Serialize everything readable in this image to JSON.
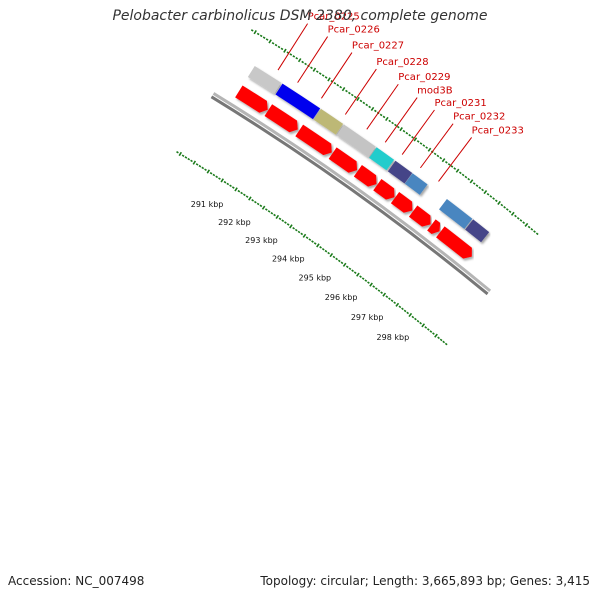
{
  "title": "Pelobacter carbinolicus DSM 2380, complete genome",
  "footer": {
    "accession": "Accession: NC_007498",
    "summary": "Topology: circular; Length: 3,665,893 bp; Genes: 3,415"
  },
  "colors": {
    "label": "#cc0000",
    "forward_gene": "#ff0000",
    "tick": "#1a7a1a",
    "backbone": "#777777"
  },
  "gene_labels": [
    {
      "name": "Pcar_0225",
      "bp": 290630
    },
    {
      "name": "Pcar_0226",
      "bp": 291300
    },
    {
      "name": "Pcar_0227",
      "bp": 292120
    },
    {
      "name": "Pcar_0228",
      "bp": 292950
    },
    {
      "name": "Pcar_0229",
      "bp": 293700
    },
    {
      "name": "mod3B",
      "bp": 294350
    },
    {
      "name": "Pcar_0231",
      "bp": 294950
    },
    {
      "name": "Pcar_0232",
      "bp": 295600
    },
    {
      "name": "Pcar_0233",
      "bp": 296250
    }
  ],
  "outer_genes": [
    {
      "start": 290000,
      "end": 290900,
      "color": "#c8c8c8"
    },
    {
      "start": 290950,
      "end": 292250,
      "color": "#0000ee"
    },
    {
      "start": 292280,
      "end": 293050,
      "color": "#bdb876"
    },
    {
      "start": 293080,
      "end": 294200,
      "color": "#c4c4c4"
    },
    {
      "start": 294230,
      "end": 294850,
      "color": "#22cccc"
    },
    {
      "start": 294900,
      "end": 295500,
      "color": "#444488"
    },
    {
      "start": 295510,
      "end": 296050,
      "color": "#4a86c0"
    },
    {
      "start": 296750,
      "end": 297680,
      "color": "#4a86c0"
    },
    {
      "start": 297710,
      "end": 298300,
      "color": "#444488"
    }
  ],
  "forward_genes": [
    {
      "start": 290000,
      "end": 291000
    },
    {
      "start": 291020,
      "end": 292050
    },
    {
      "start": 292100,
      "end": 293250
    },
    {
      "start": 293280,
      "end": 294150
    },
    {
      "start": 294180,
      "end": 294850
    },
    {
      "start": 294880,
      "end": 295500
    },
    {
      "start": 295520,
      "end": 296150
    },
    {
      "start": 296180,
      "end": 296820
    },
    {
      "start": 296850,
      "end": 297150
    },
    {
      "start": 297180,
      "end": 298350
    }
  ],
  "kbp_ticks": [
    {
      "bp": 291000,
      "label": "291 kbp"
    },
    {
      "bp": 292000,
      "label": "292 kbp"
    },
    {
      "bp": 293000,
      "label": "293 kbp"
    },
    {
      "bp": 294000,
      "label": "294 kbp"
    },
    {
      "bp": 295000,
      "label": "295 kbp"
    },
    {
      "bp": 296000,
      "label": "296 kbp"
    },
    {
      "bp": 297000,
      "label": "297 kbp"
    },
    {
      "bp": 298000,
      "label": "298 kbp"
    }
  ]
}
